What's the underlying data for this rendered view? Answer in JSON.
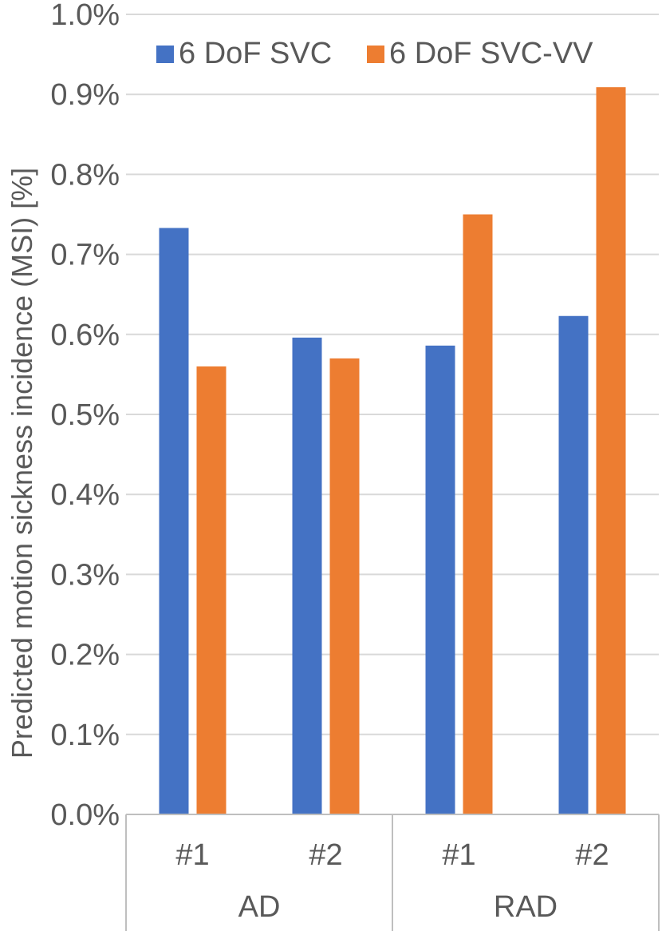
{
  "chart_data": {
    "type": "bar",
    "ylabel": "Predicted motion sickness incidence (MSI) [%]",
    "ylim": [
      0.0,
      1.0
    ],
    "y_ticks": [
      "0.0%",
      "0.1%",
      "0.2%",
      "0.3%",
      "0.4%",
      "0.5%",
      "0.6%",
      "0.7%",
      "0.8%",
      "0.9%",
      "1.0%"
    ],
    "grid": true,
    "legend_position": "top",
    "groups": [
      {
        "label": "AD",
        "categories": [
          "#1",
          "#2"
        ]
      },
      {
        "label": "RAD",
        "categories": [
          "#1",
          "#2"
        ]
      }
    ],
    "categories": [
      "#1",
      "#2",
      "#1",
      "#2"
    ],
    "series": [
      {
        "name": "6 DoF SVC",
        "color": "#4472C4",
        "values": [
          0.733,
          0.596,
          0.586,
          0.623
        ]
      },
      {
        "name": "6 DoF SVC-VV",
        "color": "#ED7D31",
        "values": [
          0.56,
          0.57,
          0.75,
          0.909
        ]
      }
    ]
  }
}
